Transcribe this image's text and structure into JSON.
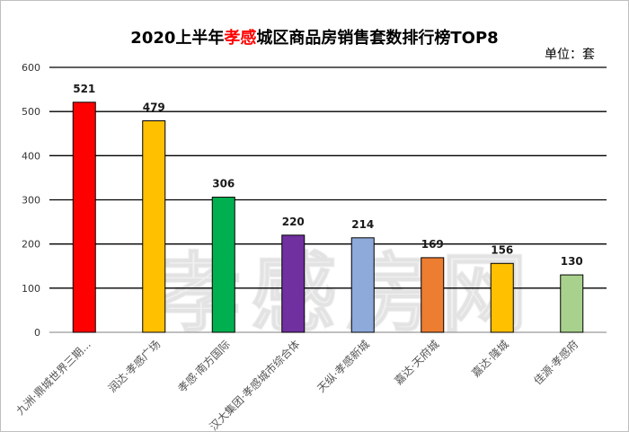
{
  "title": {
    "prefix": "2020上半年",
    "highlight": "孝感",
    "suffix": "城区商品房销售套数排行榜TOP8"
  },
  "unit": "单位：套",
  "watermark": "孝感房网",
  "colors": {
    "highlight": "#ff0000"
  },
  "chart_data": {
    "type": "bar",
    "title": "2020上半年孝感城区商品房销售套数排行榜TOP8",
    "ylabel": "",
    "xlabel": "",
    "ylim": [
      0,
      600
    ],
    "yticks": [
      0,
      100,
      200,
      300,
      400,
      500,
      600
    ],
    "grid": true,
    "categories": [
      "九洲·鼎城世界三期...",
      "润达·孝感广场",
      "孝感·南方国际",
      "汉大集团·孝感城市综合体",
      "天纵·孝感新城",
      "嘉达·天府城",
      "嘉达·隆城",
      "佳源·孝感府"
    ],
    "values": [
      521,
      479,
      306,
      220,
      214,
      169,
      156,
      130
    ],
    "bar_colors": [
      "#ff0000",
      "#ffc000",
      "#00b050",
      "#7030a0",
      "#8eaadb",
      "#ed7d31",
      "#ffc000",
      "#a9d18e"
    ]
  }
}
